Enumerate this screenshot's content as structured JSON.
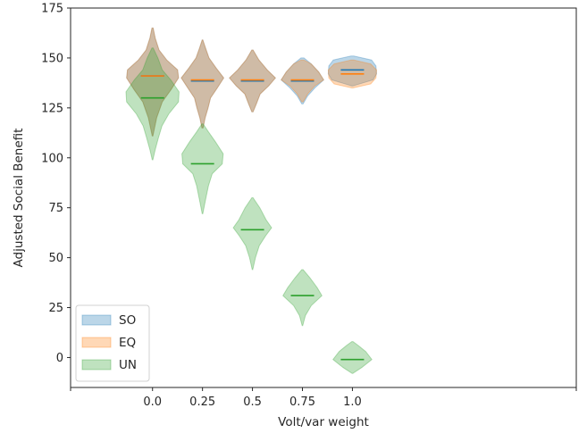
{
  "chart_data": {
    "type": "violin",
    "xlabel": "Volt/var weight",
    "ylabel": "Adjusted Social Benefit",
    "categories": [
      "0.0",
      "0.25",
      "0.5",
      "0.75",
      "1.0"
    ],
    "x_positions": [
      0.0,
      0.25,
      0.5,
      0.75,
      1.0
    ],
    "xlim": [
      -0.41,
      2.12
    ],
    "ylim": [
      -15,
      175
    ],
    "yticks": [
      0,
      25,
      50,
      75,
      100,
      125,
      150,
      175
    ],
    "ytick_labels": [
      "0",
      "25",
      "50",
      "75",
      "100",
      "125",
      "150",
      "175"
    ],
    "grid": false,
    "legend_position": "lower-left",
    "series": [
      {
        "name": "SO",
        "color": "#1f77b4",
        "medians": [
          141,
          138.5,
          138.5,
          138.5,
          144
        ],
        "violins": [
          [
            [
              111,
              0.01
            ],
            [
              120,
              0.14
            ],
            [
              128,
              0.33
            ],
            [
              134,
              0.62
            ],
            [
              140,
              0.88
            ],
            [
              144,
              0.85
            ],
            [
              149,
              0.48
            ],
            [
              154,
              0.22
            ],
            [
              160,
              0.09
            ],
            [
              165,
              0.02
            ]
          ],
          [
            [
              115,
              0.02
            ],
            [
              120,
              0.09
            ],
            [
              125,
              0.19
            ],
            [
              130,
              0.27
            ],
            [
              135,
              0.5
            ],
            [
              140,
              0.72
            ],
            [
              145,
              0.46
            ],
            [
              150,
              0.22
            ],
            [
              155,
              0.1
            ],
            [
              159,
              0.01
            ]
          ],
          [
            [
              123,
              0.02
            ],
            [
              127,
              0.13
            ],
            [
              132,
              0.26
            ],
            [
              136,
              0.55
            ],
            [
              140,
              0.78
            ],
            [
              144,
              0.5
            ],
            [
              149,
              0.22
            ],
            [
              154,
              0.02
            ]
          ],
          [
            [
              127,
              0.02
            ],
            [
              131,
              0.18
            ],
            [
              135,
              0.42
            ],
            [
              139,
              0.72
            ],
            [
              143,
              0.55
            ],
            [
              147,
              0.3
            ],
            [
              150,
              0.05
            ]
          ],
          [
            [
              136,
              0.02
            ],
            [
              139,
              0.7
            ],
            [
              142,
              0.82
            ],
            [
              146,
              0.8
            ],
            [
              149,
              0.65
            ],
            [
              151,
              0.05
            ]
          ]
        ]
      },
      {
        "name": "EQ",
        "color": "#ff7f0e",
        "medians": [
          141,
          139,
          139,
          139,
          142
        ],
        "violins": [
          [
            [
              111,
              0.01
            ],
            [
              120,
              0.14
            ],
            [
              128,
              0.33
            ],
            [
              134,
              0.62
            ],
            [
              140,
              0.88
            ],
            [
              144,
              0.85
            ],
            [
              149,
              0.48
            ],
            [
              154,
              0.22
            ],
            [
              160,
              0.09
            ],
            [
              165,
              0.02
            ]
          ],
          [
            [
              115,
              0.02
            ],
            [
              120,
              0.09
            ],
            [
              125,
              0.19
            ],
            [
              130,
              0.27
            ],
            [
              135,
              0.5
            ],
            [
              140,
              0.72
            ],
            [
              145,
              0.46
            ],
            [
              150,
              0.22
            ],
            [
              155,
              0.1
            ],
            [
              159,
              0.01
            ]
          ],
          [
            [
              123,
              0.02
            ],
            [
              127,
              0.13
            ],
            [
              132,
              0.26
            ],
            [
              136,
              0.55
            ],
            [
              140,
              0.78
            ],
            [
              144,
              0.5
            ],
            [
              149,
              0.22
            ],
            [
              154,
              0.02
            ]
          ],
          [
            [
              128,
              0.02
            ],
            [
              132,
              0.18
            ],
            [
              136,
              0.42
            ],
            [
              139,
              0.72
            ],
            [
              143,
              0.55
            ],
            [
              147,
              0.3
            ],
            [
              149,
              0.05
            ]
          ],
          [
            [
              135,
              0.02
            ],
            [
              137,
              0.62
            ],
            [
              140,
              0.8
            ],
            [
              144,
              0.82
            ],
            [
              147,
              0.62
            ],
            [
              149,
              0.05
            ]
          ]
        ]
      },
      {
        "name": "UN",
        "color": "#2ca02c",
        "medians": [
          130,
          97,
          64,
          31,
          -1
        ],
        "violins": [
          [
            [
              99,
              0.01
            ],
            [
              104,
              0.09
            ],
            [
              110,
              0.2
            ],
            [
              116,
              0.32
            ],
            [
              122,
              0.55
            ],
            [
              128,
              0.88
            ],
            [
              133,
              0.9
            ],
            [
              139,
              0.62
            ],
            [
              144,
              0.33
            ],
            [
              150,
              0.18
            ],
            [
              155,
              0.02
            ]
          ],
          [
            [
              72,
              0.01
            ],
            [
              78,
              0.09
            ],
            [
              86,
              0.2
            ],
            [
              92,
              0.33
            ],
            [
              97,
              0.67
            ],
            [
              102,
              0.7
            ],
            [
              108,
              0.44
            ],
            [
              113,
              0.2
            ],
            [
              117,
              0.02
            ]
          ],
          [
            [
              44,
              0.01
            ],
            [
              50,
              0.1
            ],
            [
              56,
              0.23
            ],
            [
              61,
              0.45
            ],
            [
              65,
              0.65
            ],
            [
              69,
              0.46
            ],
            [
              75,
              0.25
            ],
            [
              80,
              0.02
            ]
          ],
          [
            [
              16,
              0.01
            ],
            [
              21,
              0.1
            ],
            [
              26,
              0.3
            ],
            [
              31,
              0.66
            ],
            [
              35,
              0.5
            ],
            [
              40,
              0.25
            ],
            [
              44,
              0.02
            ]
          ],
          [
            [
              -8,
              0.01
            ],
            [
              -5,
              0.32
            ],
            [
              -1,
              0.66
            ],
            [
              3,
              0.45
            ],
            [
              6,
              0.2
            ],
            [
              8,
              0.02
            ]
          ]
        ]
      }
    ]
  }
}
